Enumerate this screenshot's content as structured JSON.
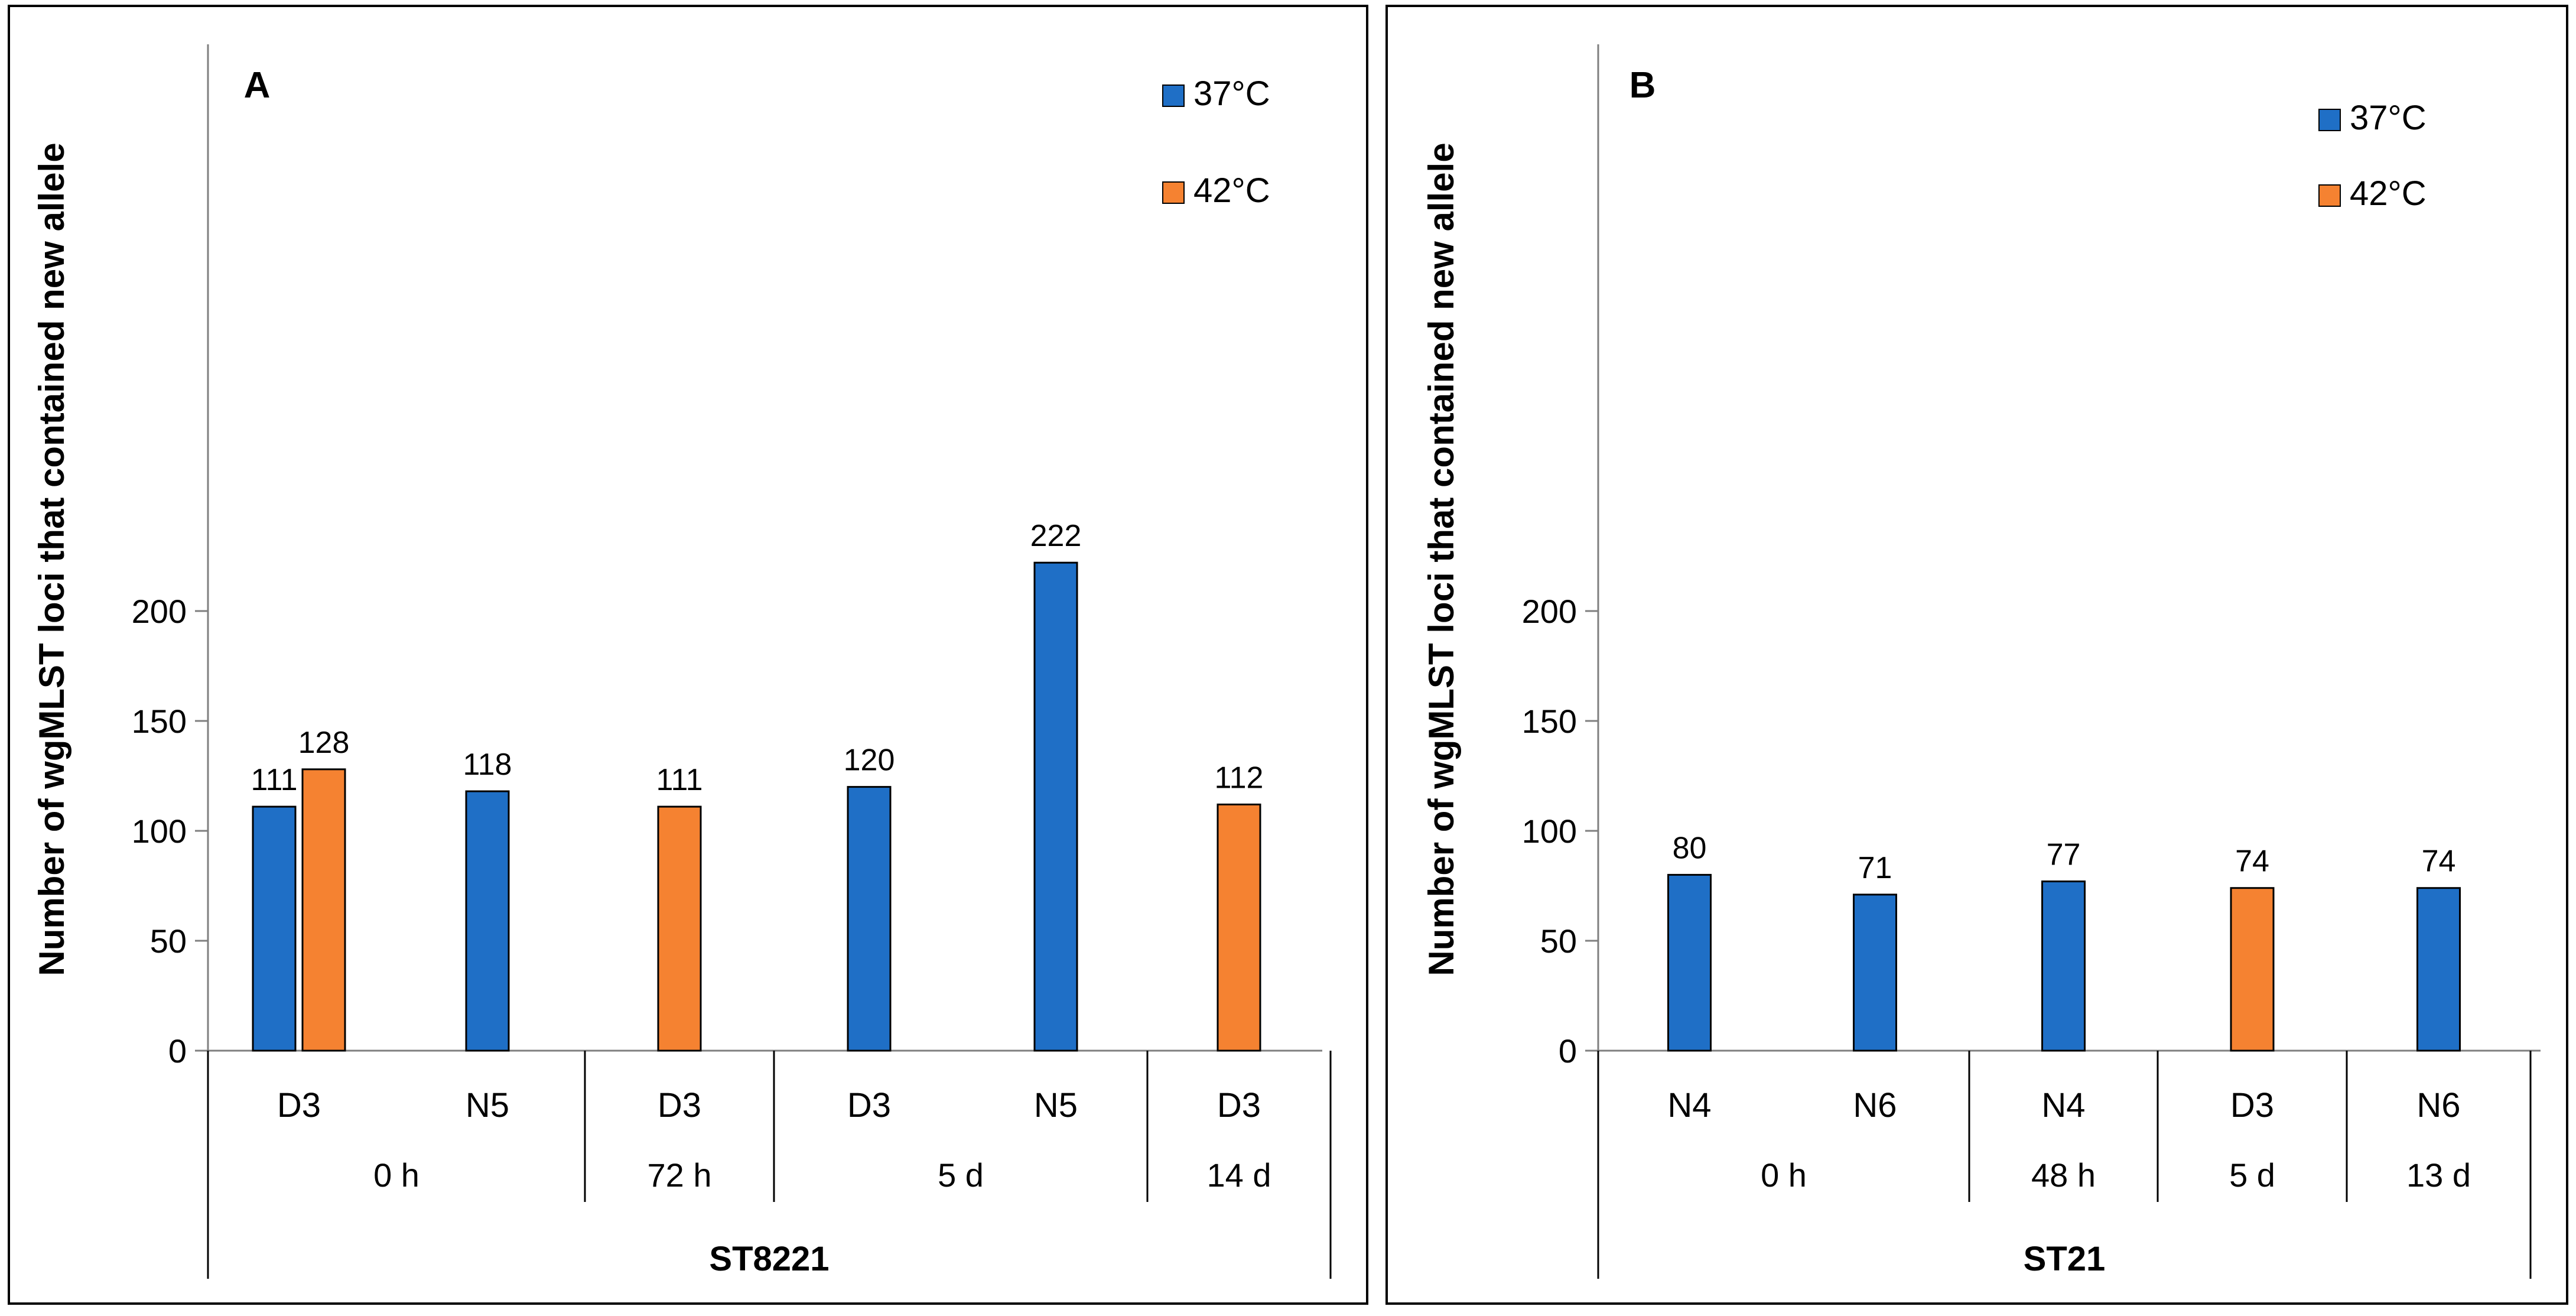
{
  "colors": {
    "c37": "#1f6fc6",
    "c42": "#f58231"
  },
  "chart_data": [
    {
      "type": "bar",
      "panel_label": "A",
      "ylabel": "Number of wgMLST loci that contained new allele",
      "ylim": [
        0,
        230
      ],
      "yticks": [
        0,
        50,
        100,
        150,
        200
      ],
      "grid": false,
      "legend": {
        "position": "top-right",
        "entries": [
          {
            "label": "37°C",
            "color": "#1f6fc6"
          },
          {
            "label": "42°C",
            "color": "#f58231"
          }
        ]
      },
      "group_label": "ST8221",
      "time_labels": [
        "0 h",
        "72 h",
        "5 d",
        "14 d"
      ],
      "categories": [
        "D3",
        "N5",
        "D3",
        "D3",
        "N5",
        "D3"
      ],
      "series": [
        {
          "name": "37°C",
          "values": [
            111,
            118,
            null,
            120,
            222,
            null
          ]
        },
        {
          "name": "42°C",
          "values": [
            128,
            null,
            111,
            null,
            null,
            112
          ]
        }
      ]
    },
    {
      "type": "bar",
      "panel_label": "B",
      "ylabel": "Number of wgMLST loci that contained new allele",
      "ylim": [
        0,
        230
      ],
      "yticks": [
        0,
        50,
        100,
        150,
        200
      ],
      "grid": false,
      "legend": {
        "position": "top-right",
        "entries": [
          {
            "label": "37°C",
            "color": "#1f6fc6"
          },
          {
            "label": "42°C",
            "color": "#f58231"
          }
        ]
      },
      "group_label": "ST21",
      "time_labels": [
        "0 h",
        "48 h",
        "5 d",
        "13 d"
      ],
      "categories": [
        "N4",
        "N6",
        "N4",
        "D3",
        "N6"
      ],
      "series": [
        {
          "name": "37°C",
          "values": [
            80,
            71,
            77,
            null,
            74
          ]
        },
        {
          "name": "42°C",
          "values": [
            null,
            null,
            null,
            74,
            null
          ]
        }
      ]
    }
  ]
}
